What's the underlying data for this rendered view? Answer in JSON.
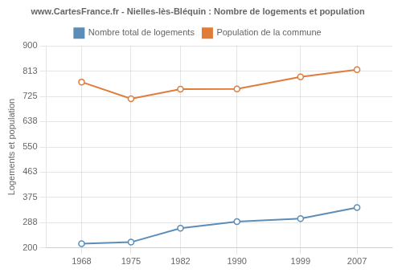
{
  "chart_data": {
    "type": "line",
    "title": "www.CartesFrance.fr - Nielles-lès-Bléquin : Nombre de logements et population",
    "ylabel": "Logements et population",
    "x": [
      1968,
      1975,
      1982,
      1990,
      1999,
      2007
    ],
    "series": [
      {
        "name": "Nombre total de logements",
        "color": "#5b8db8",
        "marker": "circle",
        "values": [
          215,
          220,
          268,
          291,
          302,
          340
        ]
      },
      {
        "name": "Population de la commune",
        "color": "#e07b3a",
        "marker": "circle",
        "values": [
          775,
          717,
          750,
          751,
          793,
          818
        ]
      }
    ],
    "xlim": [
      1963,
      2012
    ],
    "xticks": [
      1968,
      1975,
      1982,
      1990,
      1999,
      2007
    ],
    "ylim": [
      200,
      900
    ],
    "yticks": [
      200,
      288,
      375,
      463,
      550,
      638,
      725,
      813,
      900
    ],
    "grid": true,
    "legend": "top"
  }
}
